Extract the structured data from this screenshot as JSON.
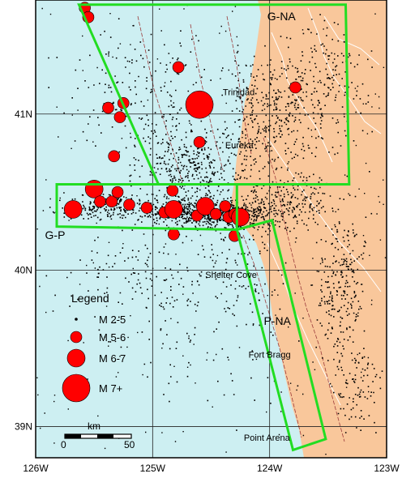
{
  "map": {
    "lon_range": [
      -126,
      -123
    ],
    "lat_range": [
      38.8,
      41.73
    ],
    "colors": {
      "ocean": "#cdeff2",
      "land": "#f9c79b",
      "grid": "#222222",
      "region_box": "#22dd22",
      "quake": "#ff0000",
      "seismicity": "#000000",
      "fault": "#9b3b3b",
      "river": "#ffffff"
    },
    "x_ticks": [
      {
        "lon": -126,
        "label": "126W"
      },
      {
        "lon": -125,
        "label": "125W"
      },
      {
        "lon": -124,
        "label": "124W"
      },
      {
        "lon": -123,
        "label": "123W"
      }
    ],
    "y_ticks": [
      {
        "lat": 41,
        "label": "41N"
      },
      {
        "lat": 40,
        "label": "40N"
      },
      {
        "lat": 39,
        "label": "39N"
      }
    ]
  },
  "regions": [
    {
      "label": "G-NA",
      "label_lon": -124.02,
      "label_lat": 41.6,
      "polygon": [
        [
          -125.63,
          41.7
        ],
        [
          -123.35,
          41.7
        ],
        [
          -123.32,
          40.55
        ],
        [
          -124.95,
          40.55
        ]
      ]
    },
    {
      "label": "G-P",
      "label_lon": -125.92,
      "label_lat": 40.2,
      "polygon": [
        [
          -125.82,
          40.55
        ],
        [
          -124.28,
          40.55
        ],
        [
          -124.28,
          40.26
        ],
        [
          -125.82,
          40.28
        ]
      ]
    },
    {
      "label": "P-NA",
      "label_lon": -124.05,
      "label_lat": 39.65,
      "polygon": [
        [
          -124.28,
          40.26
        ],
        [
          -123.98,
          40.32
        ],
        [
          -123.52,
          38.92
        ],
        [
          -123.8,
          38.85
        ]
      ]
    }
  ],
  "places": [
    {
      "name": "Trinidad",
      "lon": -124.4,
      "lat": 41.12
    },
    {
      "name": "Eureka",
      "lon": -124.38,
      "lat": 40.78
    },
    {
      "name": "Shelter Cove",
      "lon": -124.55,
      "lat": 39.95
    },
    {
      "name": "Fort Bragg",
      "lon": -124.18,
      "lat": 39.44
    },
    {
      "name": "Point Arena",
      "lon": -124.22,
      "lat": 38.91
    }
  ],
  "earthquakes": [
    {
      "lon": -125.58,
      "lat": 41.68,
      "size": "M 5-6"
    },
    {
      "lon": -125.55,
      "lat": 41.62,
      "size": "M 5-6"
    },
    {
      "lon": -124.78,
      "lat": 41.3,
      "size": "M 5-6"
    },
    {
      "lon": -125.25,
      "lat": 41.07,
      "size": "M 5-6"
    },
    {
      "lon": -125.38,
      "lat": 41.04,
      "size": "M 5-6"
    },
    {
      "lon": -123.78,
      "lat": 41.17,
      "size": "M 5-6"
    },
    {
      "lon": -124.6,
      "lat": 41.06,
      "size": "M 7+"
    },
    {
      "lon": -125.28,
      "lat": 40.98,
      "size": "M 5-6"
    },
    {
      "lon": -124.6,
      "lat": 40.82,
      "size": "M 5-6"
    },
    {
      "lon": -125.33,
      "lat": 40.73,
      "size": "M 5-6"
    },
    {
      "lon": -125.5,
      "lat": 40.52,
      "size": "M 6-7"
    },
    {
      "lon": -125.45,
      "lat": 40.44,
      "size": "M 5-6"
    },
    {
      "lon": -125.35,
      "lat": 40.44,
      "size": "M 5-6"
    },
    {
      "lon": -125.3,
      "lat": 40.5,
      "size": "M 5-6"
    },
    {
      "lon": -125.2,
      "lat": 40.42,
      "size": "M 5-6"
    },
    {
      "lon": -125.05,
      "lat": 40.4,
      "size": "M 5-6"
    },
    {
      "lon": -124.83,
      "lat": 40.51,
      "size": "M 5-6"
    },
    {
      "lon": -124.9,
      "lat": 40.37,
      "size": "M 5-6"
    },
    {
      "lon": -124.82,
      "lat": 40.39,
      "size": "M 6-7"
    },
    {
      "lon": -124.62,
      "lat": 40.35,
      "size": "M 5-6"
    },
    {
      "lon": -124.55,
      "lat": 40.41,
      "size": "M 6-7"
    },
    {
      "lon": -124.46,
      "lat": 40.36,
      "size": "M 5-6"
    },
    {
      "lon": -124.38,
      "lat": 40.41,
      "size": "M 5-6"
    },
    {
      "lon": -124.35,
      "lat": 40.34,
      "size": "M 5-6"
    },
    {
      "lon": -124.3,
      "lat": 40.36,
      "size": "M 5-6"
    },
    {
      "lon": -124.25,
      "lat": 40.34,
      "size": "M 6-7"
    },
    {
      "lon": -124.3,
      "lat": 40.22,
      "size": "M 5-6"
    },
    {
      "lon": -124.82,
      "lat": 40.23,
      "size": "M 5-6"
    },
    {
      "lon": -125.68,
      "lat": 40.39,
      "size": "M 6-7"
    }
  ],
  "legend": {
    "title": "Legend",
    "items": [
      {
        "label": "M 2-5",
        "radius": 1.8
      },
      {
        "label": "M 5-6",
        "radius": 7
      },
      {
        "label": "M 6-7",
        "radius": 11
      },
      {
        "label": "M 7+",
        "radius": 17
      }
    ]
  },
  "scale_bar": {
    "unit": "km",
    "tick_start": "0",
    "tick_end": "50"
  }
}
